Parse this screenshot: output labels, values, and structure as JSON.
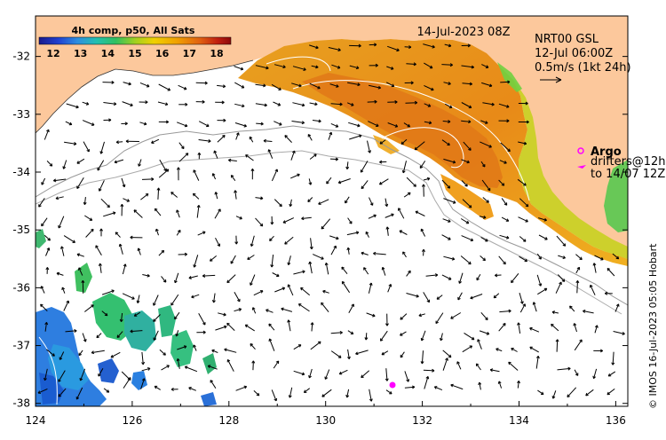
{
  "date_label": "14-Jul-2023 08Z",
  "colorbar": {
    "title": "4h comp, p50, All Sats",
    "ticks": [
      "12",
      "13",
      "14",
      "15",
      "16",
      "17",
      "18"
    ],
    "colors": [
      "#1a1a8c",
      "#2040d0",
      "#2e8ee0",
      "#22c0b0",
      "#30c060",
      "#a0d020",
      "#f0d000",
      "#f0a000",
      "#e06010",
      "#c02010",
      "#8c0a0a"
    ]
  },
  "current_legend": {
    "line1": "NRT00 GSL",
    "line2": "12-Jul 06:00Z",
    "line3": "0.5m/s (1kt 24h)"
  },
  "argo_legend": {
    "label": "Argo",
    "line1": "drifters@12h",
    "line2": "to 14/07 12Z"
  },
  "credit": "© IMOS 16-Jul-2023 05:05 Hobart",
  "axes": {
    "x_ticks": [
      "124",
      "126",
      "128",
      "130",
      "132",
      "134",
      "136"
    ],
    "y_ticks": [
      "-32",
      "-33",
      "-34",
      "-35",
      "-36",
      "-37",
      "-38"
    ],
    "x_values": [
      124,
      126,
      128,
      130,
      132,
      134,
      136
    ],
    "y_values": [
      -32,
      -33,
      -34,
      -35,
      -36,
      -37,
      -38
    ],
    "lon_range": [
      124,
      136.25
    ],
    "lat_range": [
      -38.05,
      -31.3
    ]
  },
  "colors": {
    "land": "#fcc89c",
    "ocean": "#ffffff",
    "warm_core": "#e88c18",
    "coast_band": "#f0c020",
    "nearshore_green": "#70d040",
    "offshore_blue": "#3080e0",
    "argo": "#ff00ff"
  }
}
